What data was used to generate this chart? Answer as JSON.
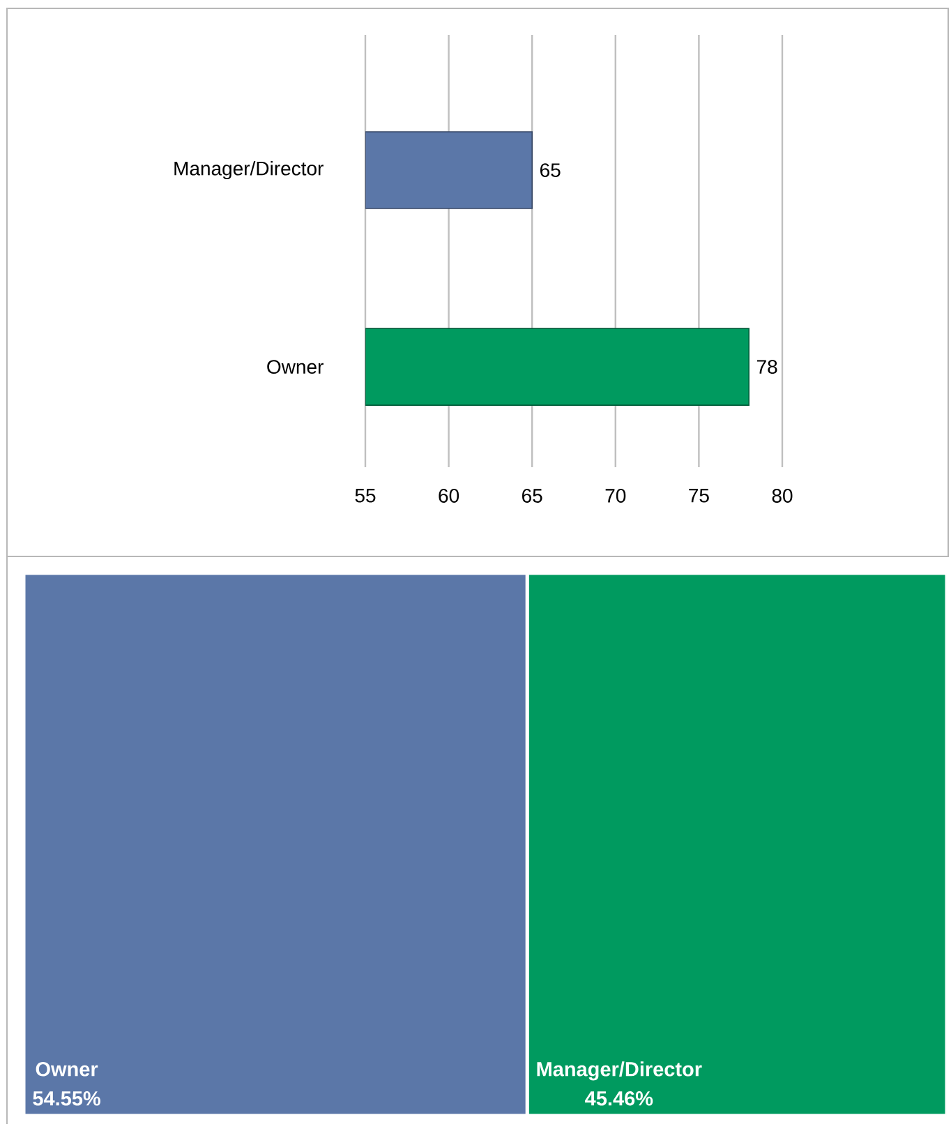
{
  "chart_data": [
    {
      "type": "bar",
      "orientation": "horizontal",
      "categories": [
        "Manager/Director",
        "Owner"
      ],
      "values": [
        65,
        78
      ],
      "colors": [
        "#5b77a8",
        "#009a5f"
      ],
      "xlim": [
        55,
        80
      ],
      "xticks": [
        55,
        60,
        65,
        70,
        75,
        80
      ],
      "grid": "x",
      "data_labels": true
    },
    {
      "type": "other",
      "categories": [
        "Owner",
        "Manager/Director"
      ],
      "values": [
        54.55,
        45.46
      ],
      "value_labels": [
        "54.55%",
        "45.46%"
      ],
      "colors": [
        "#5b77a8",
        "#009a5f"
      ]
    }
  ]
}
